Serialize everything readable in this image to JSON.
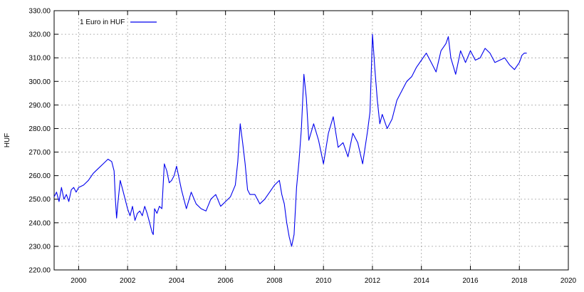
{
  "chart_data": {
    "type": "line",
    "title": "",
    "xlabel": "",
    "ylabel": "HUF",
    "xlim": [
      1999.0,
      2020.0
    ],
    "ylim": [
      220,
      330
    ],
    "x_ticks": [
      2000,
      2002,
      2004,
      2006,
      2008,
      2010,
      2012,
      2014,
      2016,
      2018,
      2020
    ],
    "x_tick_labels": [
      "2000",
      "2002",
      "2004",
      "2006",
      "2008",
      "2010",
      "2012",
      "2014",
      "2016",
      "2018",
      "2020"
    ],
    "y_ticks": [
      220,
      230,
      240,
      250,
      260,
      270,
      280,
      290,
      300,
      310,
      320,
      330
    ],
    "y_tick_labels": [
      "220.00",
      "230.00",
      "240.00",
      "250.00",
      "260.00",
      "270.00",
      "280.00",
      "290.00",
      "300.00",
      "310.00",
      "320.00",
      "330.00"
    ],
    "grid": true,
    "legend_position": "top-left",
    "series": [
      {
        "name": "1 Euro in HUF",
        "color": "#0000ee",
        "x": [
          1999.0,
          1999.1,
          1999.2,
          1999.3,
          1999.4,
          1999.5,
          1999.6,
          1999.7,
          1999.8,
          1999.9,
          2000.0,
          2000.2,
          2000.4,
          2000.6,
          2000.8,
          2001.0,
          2001.2,
          2001.35,
          2001.45,
          2001.5,
          2001.55,
          2001.6,
          2001.7,
          2001.8,
          2001.9,
          2002.0,
          2002.1,
          2002.2,
          2002.3,
          2002.4,
          2002.5,
          2002.6,
          2002.7,
          2002.8,
          2002.9,
          2003.0,
          2003.05,
          2003.1,
          2003.2,
          2003.3,
          2003.4,
          2003.5,
          2003.6,
          2003.7,
          2003.8,
          2003.9,
          2004.0,
          2004.2,
          2004.4,
          2004.6,
          2004.8,
          2005.0,
          2005.2,
          2005.4,
          2005.6,
          2005.8,
          2006.0,
          2006.2,
          2006.4,
          2006.5,
          2006.6,
          2006.7,
          2006.8,
          2006.9,
          2007.0,
          2007.2,
          2007.4,
          2007.6,
          2007.8,
          2008.0,
          2008.2,
          2008.3,
          2008.4,
          2008.5,
          2008.6,
          2008.7,
          2008.8,
          2008.9,
          2009.0,
          2009.1,
          2009.2,
          2009.3,
          2009.4,
          2009.6,
          2009.8,
          2010.0,
          2010.2,
          2010.4,
          2010.6,
          2010.8,
          2011.0,
          2011.2,
          2011.4,
          2011.6,
          2011.8,
          2011.9,
          2012.0,
          2012.1,
          2012.2,
          2012.3,
          2012.4,
          2012.6,
          2012.8,
          2013.0,
          2013.2,
          2013.4,
          2013.6,
          2013.8,
          2014.0,
          2014.2,
          2014.4,
          2014.6,
          2014.8,
          2015.0,
          2015.1,
          2015.2,
          2015.4,
          2015.6,
          2015.8,
          2016.0,
          2016.2,
          2016.4,
          2016.6,
          2016.8,
          2017.0,
          2017.2,
          2017.4,
          2017.6,
          2017.8,
          2018.0,
          2018.1,
          2018.2,
          2018.3
        ],
        "values": [
          251,
          253,
          249,
          255,
          250,
          252,
          249,
          254,
          255,
          253,
          255,
          256,
          258,
          261,
          263,
          265,
          267,
          266,
          262,
          250,
          242,
          248,
          258,
          254,
          250,
          246,
          243,
          247,
          241,
          244,
          245,
          243,
          247,
          244,
          240,
          236,
          235,
          246,
          244,
          247,
          246,
          265,
          262,
          257,
          258,
          260,
          264,
          254,
          246,
          253,
          248,
          246,
          245,
          250,
          252,
          247,
          249,
          251,
          256,
          266,
          282,
          274,
          265,
          254,
          252,
          252,
          248,
          250,
          253,
          256,
          258,
          252,
          248,
          240,
          234,
          230,
          235,
          255,
          266,
          280,
          303,
          293,
          275,
          282,
          275,
          265,
          278,
          285,
          272,
          274,
          268,
          278,
          274,
          265,
          279,
          287,
          320,
          305,
          292,
          282,
          286,
          280,
          284,
          292,
          296,
          300,
          302,
          306,
          309,
          312,
          308,
          304,
          313,
          316,
          319,
          310,
          303,
          313,
          308,
          313,
          309,
          310,
          314,
          312,
          308,
          309,
          310,
          307,
          305,
          308,
          311,
          312,
          312
        ]
      }
    ]
  }
}
